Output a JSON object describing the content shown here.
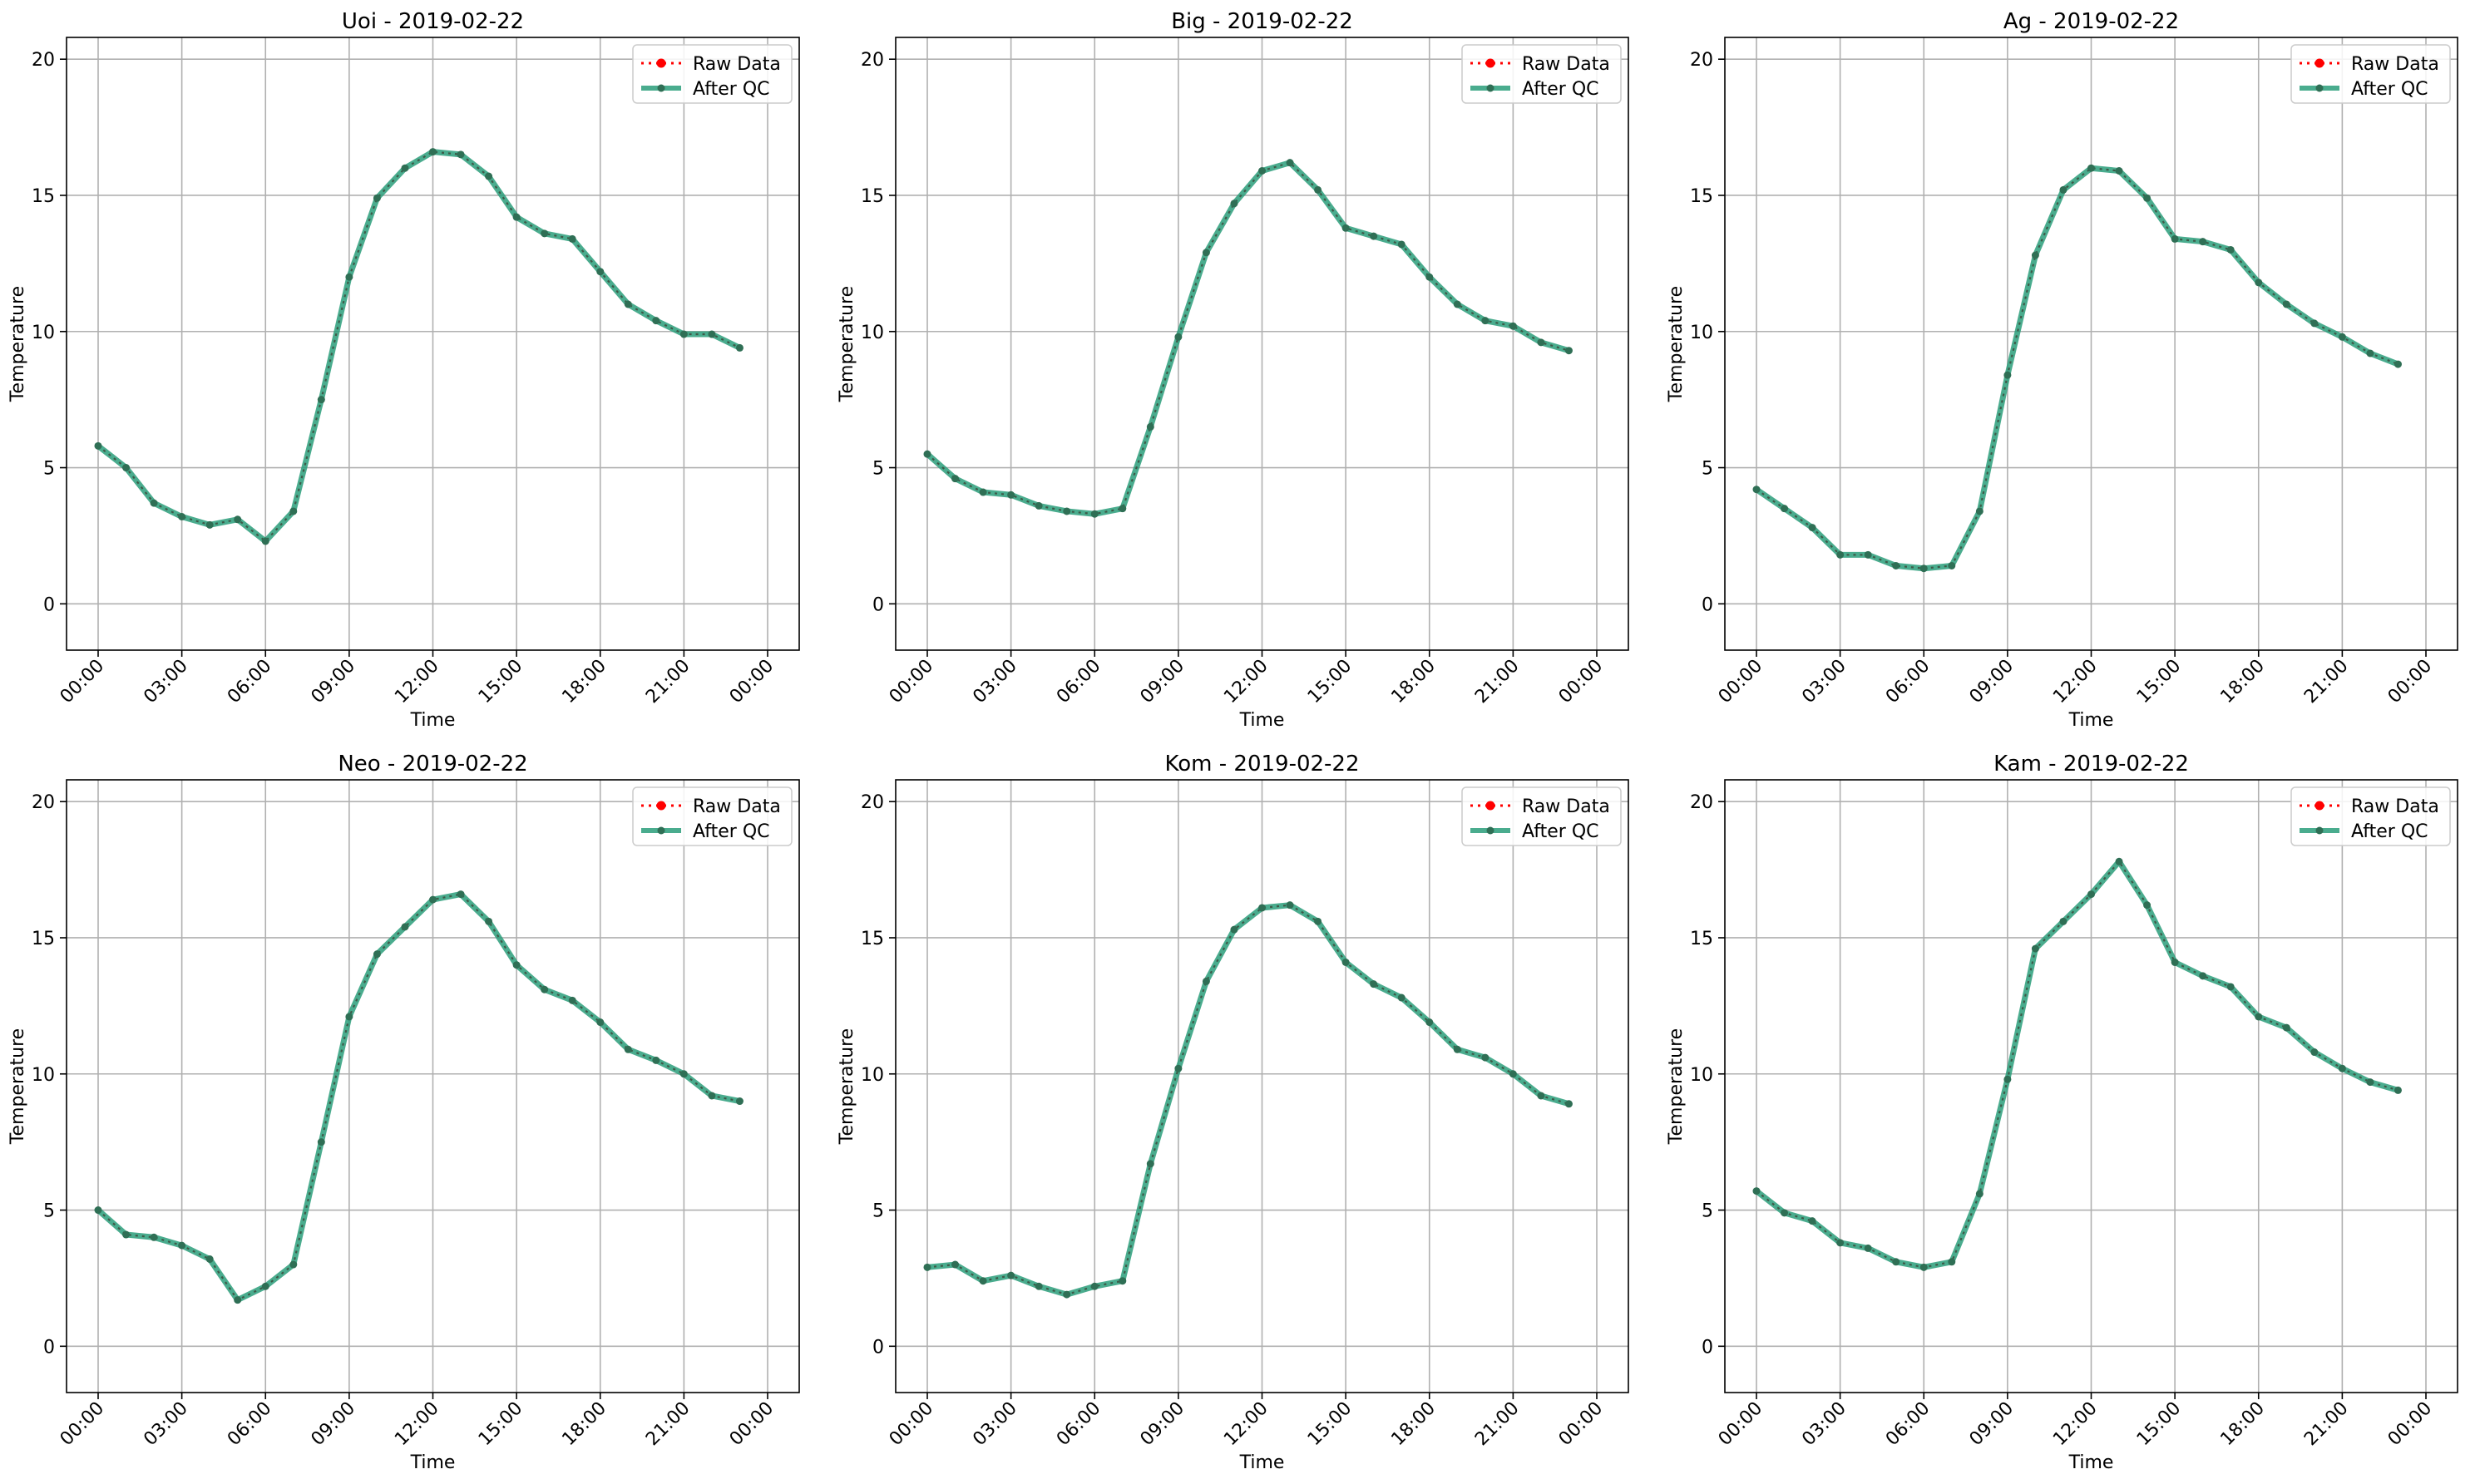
{
  "legend_labels": {
    "raw": "Raw Data",
    "qc": "After QC"
  },
  "colors": {
    "raw": "#ff0000",
    "qc": "#2a9d7a",
    "grid": "#b0b0b0",
    "axis": "#000000"
  },
  "chart_data": [
    {
      "type": "line",
      "title": "Uoi - 2019-02-22",
      "xlabel": "Time",
      "ylabel": "Temperature",
      "xticks": [
        "00:00",
        "03:00",
        "06:00",
        "09:00",
        "12:00",
        "15:00",
        "18:00",
        "21:00",
        "00:00"
      ],
      "yticks": [
        0,
        5,
        10,
        15,
        20
      ],
      "ylim": [
        -1.7,
        20.8
      ],
      "grid": true,
      "legend_position": "top-right",
      "series": [
        {
          "name": "Raw Data",
          "values": [
            5.8,
            5.0,
            3.7,
            3.2,
            2.9,
            3.1,
            2.3,
            3.4,
            7.5,
            12.0,
            14.9,
            16.0,
            16.6,
            16.5,
            15.7,
            14.2,
            13.6,
            13.4,
            12.2,
            11.0,
            10.4,
            9.9,
            9.9,
            9.4
          ]
        },
        {
          "name": "After QC",
          "values": [
            5.8,
            5.0,
            3.7,
            3.2,
            2.9,
            3.1,
            2.3,
            3.4,
            7.5,
            12.0,
            14.9,
            16.0,
            16.6,
            16.5,
            15.7,
            14.2,
            13.6,
            13.4,
            12.2,
            11.0,
            10.4,
            9.9,
            9.9,
            9.4
          ]
        }
      ]
    },
    {
      "type": "line",
      "title": "Big - 2019-02-22",
      "xlabel": "Time",
      "ylabel": "Temperature",
      "xticks": [
        "00:00",
        "03:00",
        "06:00",
        "09:00",
        "12:00",
        "15:00",
        "18:00",
        "21:00",
        "00:00"
      ],
      "yticks": [
        0,
        5,
        10,
        15,
        20
      ],
      "ylim": [
        -1.7,
        20.8
      ],
      "grid": true,
      "legend_position": "top-right",
      "series": [
        {
          "name": "Raw Data",
          "values": [
            5.5,
            4.6,
            4.1,
            4.0,
            3.6,
            3.4,
            3.3,
            3.5,
            6.5,
            9.8,
            12.9,
            14.7,
            15.9,
            16.2,
            15.2,
            13.8,
            13.5,
            13.2,
            12.0,
            11.0,
            10.4,
            10.2,
            9.6,
            9.3
          ]
        },
        {
          "name": "After QC",
          "values": [
            5.5,
            4.6,
            4.1,
            4.0,
            3.6,
            3.4,
            3.3,
            3.5,
            6.5,
            9.8,
            12.9,
            14.7,
            15.9,
            16.2,
            15.2,
            13.8,
            13.5,
            13.2,
            12.0,
            11.0,
            10.4,
            10.2,
            9.6,
            9.3
          ]
        }
      ]
    },
    {
      "type": "line",
      "title": "Ag - 2019-02-22",
      "xlabel": "Time",
      "ylabel": "Temperature",
      "xticks": [
        "00:00",
        "03:00",
        "06:00",
        "09:00",
        "12:00",
        "15:00",
        "18:00",
        "21:00",
        "00:00"
      ],
      "yticks": [
        0,
        5,
        10,
        15,
        20
      ],
      "ylim": [
        -1.7,
        20.8
      ],
      "grid": true,
      "legend_position": "top-right",
      "series": [
        {
          "name": "Raw Data",
          "values": [
            4.2,
            3.5,
            2.8,
            1.8,
            1.8,
            1.4,
            1.3,
            1.4,
            3.4,
            8.4,
            12.8,
            15.2,
            16.0,
            15.9,
            14.9,
            13.4,
            13.3,
            13.0,
            11.8,
            11.0,
            10.3,
            9.8,
            9.2,
            8.8
          ]
        },
        {
          "name": "After QC",
          "values": [
            4.2,
            3.5,
            2.8,
            1.8,
            1.8,
            1.4,
            1.3,
            1.4,
            3.4,
            8.4,
            12.8,
            15.2,
            16.0,
            15.9,
            14.9,
            13.4,
            13.3,
            13.0,
            11.8,
            11.0,
            10.3,
            9.8,
            9.2,
            8.8
          ]
        }
      ]
    },
    {
      "type": "line",
      "title": "Neo - 2019-02-22",
      "xlabel": "Time",
      "ylabel": "Temperature",
      "xticks": [
        "00:00",
        "03:00",
        "06:00",
        "09:00",
        "12:00",
        "15:00",
        "18:00",
        "21:00",
        "00:00"
      ],
      "yticks": [
        0,
        5,
        10,
        15,
        20
      ],
      "ylim": [
        -1.7,
        20.8
      ],
      "grid": true,
      "legend_position": "top-right",
      "series": [
        {
          "name": "Raw Data",
          "values": [
            5.0,
            4.1,
            4.0,
            3.7,
            3.2,
            1.7,
            2.2,
            3.0,
            7.5,
            12.1,
            14.4,
            15.4,
            16.4,
            16.6,
            15.6,
            14.0,
            13.1,
            12.7,
            11.9,
            10.9,
            10.5,
            10.0,
            9.2,
            9.0
          ]
        },
        {
          "name": "After QC",
          "values": [
            5.0,
            4.1,
            4.0,
            3.7,
            3.2,
            1.7,
            2.2,
            3.0,
            7.5,
            12.1,
            14.4,
            15.4,
            16.4,
            16.6,
            15.6,
            14.0,
            13.1,
            12.7,
            11.9,
            10.9,
            10.5,
            10.0,
            9.2,
            9.0
          ]
        }
      ]
    },
    {
      "type": "line",
      "title": "Kom - 2019-02-22",
      "xlabel": "Time",
      "ylabel": "Temperature",
      "xticks": [
        "00:00",
        "03:00",
        "06:00",
        "09:00",
        "12:00",
        "15:00",
        "18:00",
        "21:00",
        "00:00"
      ],
      "yticks": [
        0,
        5,
        10,
        15,
        20
      ],
      "ylim": [
        -1.7,
        20.8
      ],
      "grid": true,
      "legend_position": "top-right",
      "series": [
        {
          "name": "Raw Data",
          "values": [
            2.9,
            3.0,
            2.4,
            2.6,
            2.2,
            1.9,
            2.2,
            2.4,
            6.7,
            10.2,
            13.4,
            15.3,
            16.1,
            16.2,
            15.6,
            14.1,
            13.3,
            12.8,
            11.9,
            10.9,
            10.6,
            10.0,
            9.2,
            8.9
          ]
        },
        {
          "name": "After QC",
          "values": [
            2.9,
            3.0,
            2.4,
            2.6,
            2.2,
            1.9,
            2.2,
            2.4,
            6.7,
            10.2,
            13.4,
            15.3,
            16.1,
            16.2,
            15.6,
            14.1,
            13.3,
            12.8,
            11.9,
            10.9,
            10.6,
            10.0,
            9.2,
            8.9
          ]
        }
      ]
    },
    {
      "type": "line",
      "title": "Kam - 2019-02-22",
      "xlabel": "Time",
      "ylabel": "Temperature",
      "xticks": [
        "00:00",
        "03:00",
        "06:00",
        "09:00",
        "12:00",
        "15:00",
        "18:00",
        "21:00",
        "00:00"
      ],
      "yticks": [
        0,
        5,
        10,
        15,
        20
      ],
      "ylim": [
        -1.7,
        20.8
      ],
      "grid": true,
      "legend_position": "top-right",
      "series": [
        {
          "name": "Raw Data",
          "values": [
            5.7,
            4.9,
            4.6,
            3.8,
            3.6,
            3.1,
            2.9,
            3.1,
            5.6,
            9.8,
            14.6,
            15.6,
            16.6,
            17.8,
            16.2,
            14.1,
            13.6,
            13.2,
            12.1,
            11.7,
            10.8,
            10.2,
            9.7,
            9.4
          ]
        },
        {
          "name": "After QC",
          "values": [
            5.7,
            4.9,
            4.6,
            3.8,
            3.6,
            3.1,
            2.9,
            3.1,
            5.6,
            9.8,
            14.6,
            15.6,
            16.6,
            17.8,
            16.2,
            14.1,
            13.6,
            13.2,
            12.1,
            11.7,
            10.8,
            10.2,
            9.7,
            9.4
          ]
        }
      ]
    }
  ]
}
